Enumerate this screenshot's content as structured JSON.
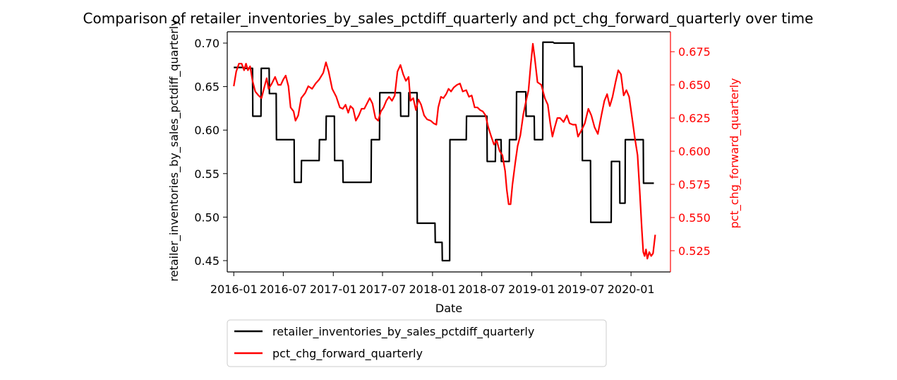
{
  "chart_data": {
    "type": "line",
    "title": "Comparison of retailer_inventories_by_sales_pctdiff_quarterly and pct_chg_forward_quarterly over time",
    "xlabel": "Date",
    "ylabel_left": "retailer_inventories_by_sales_pctdiff_quarterly",
    "ylabel_right": "pct_chg_forward_quarterly",
    "x_ticks": [
      "2016-01",
      "2016-07",
      "2017-01",
      "2017-07",
      "2018-01",
      "2018-07",
      "2019-01",
      "2019-07",
      "2020-01"
    ],
    "y_left_ticks": [
      "0.45",
      "0.50",
      "0.55",
      "0.60",
      "0.65",
      "0.70"
    ],
    "y_right_ticks": [
      "0.525",
      "0.550",
      "0.575",
      "0.600",
      "0.625",
      "0.650",
      "0.675"
    ],
    "y_left_lim": [
      0.437,
      0.713
    ],
    "y_right_lim": [
      0.509,
      0.69
    ],
    "grid": false,
    "legend_position": "below",
    "colors": {
      "left_series": "#000000",
      "right_series": "#ff0000",
      "right_axis": "#ff0000"
    },
    "series": [
      {
        "name": "retailer_inventories_by_sales_pctdiff_quarterly",
        "axis": "left",
        "color": "#000000",
        "points": [
          [
            "2016-01-01",
            0.672
          ],
          [
            "2016-02-05",
            0.672
          ],
          [
            "2016-02-10",
            0.671
          ],
          [
            "2016-03-10",
            0.671
          ],
          [
            "2016-03-11",
            0.616
          ],
          [
            "2016-04-10",
            0.616
          ],
          [
            "2016-04-11",
            0.671
          ],
          [
            "2016-05-10",
            0.671
          ],
          [
            "2016-05-11",
            0.642
          ],
          [
            "2016-06-05",
            0.642
          ],
          [
            "2016-06-06",
            0.589
          ],
          [
            "2016-08-10",
            0.589
          ],
          [
            "2016-08-11",
            0.54
          ],
          [
            "2016-09-05",
            0.54
          ],
          [
            "2016-09-06",
            0.565
          ],
          [
            "2016-11-10",
            0.565
          ],
          [
            "2016-11-11",
            0.589
          ],
          [
            "2016-12-05",
            0.589
          ],
          [
            "2016-12-06",
            0.616
          ],
          [
            "2017-01-05",
            0.616
          ],
          [
            "2017-01-06",
            0.565
          ],
          [
            "2017-02-05",
            0.565
          ],
          [
            "2017-02-06",
            0.54
          ],
          [
            "2017-05-20",
            0.54
          ],
          [
            "2017-05-21",
            0.589
          ],
          [
            "2017-06-20",
            0.589
          ],
          [
            "2017-06-21",
            0.643
          ],
          [
            "2017-09-05",
            0.643
          ],
          [
            "2017-09-06",
            0.616
          ],
          [
            "2017-10-05",
            0.616
          ],
          [
            "2017-10-06",
            0.643
          ],
          [
            "2017-11-05",
            0.643
          ],
          [
            "2017-11-06",
            0.493
          ],
          [
            "2018-01-10",
            0.493
          ],
          [
            "2018-01-11",
            0.471
          ],
          [
            "2018-02-05",
            0.471
          ],
          [
            "2018-02-06",
            0.45
          ],
          [
            "2018-03-05",
            0.45
          ],
          [
            "2018-03-06",
            0.589
          ],
          [
            "2018-05-05",
            0.589
          ],
          [
            "2018-05-06",
            0.616
          ],
          [
            "2018-07-20",
            0.616
          ],
          [
            "2018-07-21",
            0.564
          ],
          [
            "2018-08-20",
            0.564
          ],
          [
            "2018-08-21",
            0.589
          ],
          [
            "2018-09-10",
            0.589
          ],
          [
            "2018-09-11",
            0.564
          ],
          [
            "2018-10-10",
            0.564
          ],
          [
            "2018-10-11",
            0.589
          ],
          [
            "2018-11-05",
            0.589
          ],
          [
            "2018-11-06",
            0.644
          ],
          [
            "2018-12-10",
            0.644
          ],
          [
            "2018-12-11",
            0.616
          ],
          [
            "2019-01-10",
            0.616
          ],
          [
            "2019-01-11",
            0.589
          ],
          [
            "2019-02-10",
            0.589
          ],
          [
            "2019-02-11",
            0.701
          ],
          [
            "2019-03-20",
            0.701
          ],
          [
            "2019-03-25",
            0.7
          ],
          [
            "2019-06-05",
            0.7
          ],
          [
            "2019-06-06",
            0.673
          ],
          [
            "2019-07-05",
            0.673
          ],
          [
            "2019-07-06",
            0.565
          ],
          [
            "2019-08-05",
            0.565
          ],
          [
            "2019-08-06",
            0.494
          ],
          [
            "2019-10-20",
            0.494
          ],
          [
            "2019-10-21",
            0.564
          ],
          [
            "2019-11-20",
            0.564
          ],
          [
            "2019-11-21",
            0.516
          ],
          [
            "2019-12-10",
            0.516
          ],
          [
            "2019-12-11",
            0.589
          ],
          [
            "2020-02-15",
            0.589
          ],
          [
            "2020-02-16",
            0.539
          ],
          [
            "2020-03-25",
            0.539
          ]
        ]
      },
      {
        "name": "pct_chg_forward_quarterly",
        "axis": "right",
        "color": "#ff0000",
        "points": [
          [
            "2016-01-01",
            0.649
          ],
          [
            "2016-01-10",
            0.66
          ],
          [
            "2016-01-20",
            0.666
          ],
          [
            "2016-01-30",
            0.666
          ],
          [
            "2016-02-08",
            0.661
          ],
          [
            "2016-02-15",
            0.666
          ],
          [
            "2016-02-22",
            0.661
          ],
          [
            "2016-03-01",
            0.664
          ],
          [
            "2016-03-10",
            0.653
          ],
          [
            "2016-03-20",
            0.645
          ],
          [
            "2016-04-01",
            0.642
          ],
          [
            "2016-04-12",
            0.64
          ],
          [
            "2016-04-22",
            0.648
          ],
          [
            "2016-05-01",
            0.655
          ],
          [
            "2016-05-08",
            0.647
          ],
          [
            "2016-05-20",
            0.651
          ],
          [
            "2016-06-01",
            0.656
          ],
          [
            "2016-06-12",
            0.65
          ],
          [
            "2016-06-22",
            0.65
          ],
          [
            "2016-07-01",
            0.654
          ],
          [
            "2016-07-10",
            0.657
          ],
          [
            "2016-07-20",
            0.649
          ],
          [
            "2016-07-28",
            0.633
          ],
          [
            "2016-08-08",
            0.63
          ],
          [
            "2016-08-15",
            0.623
          ],
          [
            "2016-08-25",
            0.627
          ],
          [
            "2016-09-05",
            0.64
          ],
          [
            "2016-09-20",
            0.644
          ],
          [
            "2016-10-01",
            0.649
          ],
          [
            "2016-10-15",
            0.647
          ],
          [
            "2016-10-28",
            0.651
          ],
          [
            "2016-11-10",
            0.654
          ],
          [
            "2016-11-25",
            0.659
          ],
          [
            "2016-12-05",
            0.667
          ],
          [
            "2016-12-15",
            0.66
          ],
          [
            "2016-12-28",
            0.647
          ],
          [
            "2017-01-12",
            0.641
          ],
          [
            "2017-01-25",
            0.633
          ],
          [
            "2017-02-05",
            0.632
          ],
          [
            "2017-02-15",
            0.635
          ],
          [
            "2017-02-25",
            0.629
          ],
          [
            "2017-03-05",
            0.634
          ],
          [
            "2017-03-15",
            0.632
          ],
          [
            "2017-03-25",
            0.623
          ],
          [
            "2017-04-05",
            0.627
          ],
          [
            "2017-04-15",
            0.632
          ],
          [
            "2017-04-25",
            0.632
          ],
          [
            "2017-05-05",
            0.636
          ],
          [
            "2017-05-15",
            0.64
          ],
          [
            "2017-05-25",
            0.636
          ],
          [
            "2017-06-05",
            0.625
          ],
          [
            "2017-06-15",
            0.623
          ],
          [
            "2017-06-25",
            0.63
          ],
          [
            "2017-07-05",
            0.633
          ],
          [
            "2017-07-15",
            0.638
          ],
          [
            "2017-07-25",
            0.641
          ],
          [
            "2017-08-05",
            0.638
          ],
          [
            "2017-08-15",
            0.642
          ],
          [
            "2017-08-25",
            0.66
          ],
          [
            "2017-09-05",
            0.665
          ],
          [
            "2017-09-15",
            0.658
          ],
          [
            "2017-09-25",
            0.653
          ],
          [
            "2017-10-05",
            0.656
          ],
          [
            "2017-10-12",
            0.638
          ],
          [
            "2017-10-22",
            0.64
          ],
          [
            "2017-11-01",
            0.631
          ],
          [
            "2017-11-10",
            0.639
          ],
          [
            "2017-11-20",
            0.635
          ],
          [
            "2017-12-01",
            0.627
          ],
          [
            "2017-12-12",
            0.624
          ],
          [
            "2017-12-25",
            0.623
          ],
          [
            "2018-01-05",
            0.621
          ],
          [
            "2018-01-15",
            0.62
          ],
          [
            "2018-01-22",
            0.633
          ],
          [
            "2018-02-01",
            0.641
          ],
          [
            "2018-02-10",
            0.64
          ],
          [
            "2018-02-20",
            0.643
          ],
          [
            "2018-03-01",
            0.647
          ],
          [
            "2018-03-10",
            0.645
          ],
          [
            "2018-03-20",
            0.648
          ],
          [
            "2018-04-01",
            0.65
          ],
          [
            "2018-04-12",
            0.651
          ],
          [
            "2018-04-22",
            0.645
          ],
          [
            "2018-05-05",
            0.646
          ],
          [
            "2018-05-15",
            0.641
          ],
          [
            "2018-05-25",
            0.642
          ],
          [
            "2018-06-05",
            0.633
          ],
          [
            "2018-06-15",
            0.633
          ],
          [
            "2018-06-25",
            0.631
          ],
          [
            "2018-07-05",
            0.63
          ],
          [
            "2018-07-15",
            0.627
          ],
          [
            "2018-07-25",
            0.618
          ],
          [
            "2018-08-05",
            0.611
          ],
          [
            "2018-08-15",
            0.605
          ],
          [
            "2018-08-25",
            0.608
          ],
          [
            "2018-09-05",
            0.6
          ],
          [
            "2018-09-15",
            0.597
          ],
          [
            "2018-09-25",
            0.585
          ],
          [
            "2018-10-01",
            0.571
          ],
          [
            "2018-10-08",
            0.56
          ],
          [
            "2018-10-15",
            0.56
          ],
          [
            "2018-10-22",
            0.575
          ],
          [
            "2018-11-01",
            0.591
          ],
          [
            "2018-11-10",
            0.604
          ],
          [
            "2018-11-20",
            0.612
          ],
          [
            "2018-12-01",
            0.628
          ],
          [
            "2018-12-10",
            0.637
          ],
          [
            "2018-12-20",
            0.646
          ],
          [
            "2018-12-28",
            0.665
          ],
          [
            "2019-01-05",
            0.681
          ],
          [
            "2019-01-12",
            0.67
          ],
          [
            "2019-01-22",
            0.652
          ],
          [
            "2019-02-05",
            0.65
          ],
          [
            "2019-02-18",
            0.64
          ],
          [
            "2019-03-01",
            0.635
          ],
          [
            "2019-03-10",
            0.621
          ],
          [
            "2019-03-18",
            0.611
          ],
          [
            "2019-03-25",
            0.617
          ],
          [
            "2019-04-05",
            0.625
          ],
          [
            "2019-04-15",
            0.625
          ],
          [
            "2019-04-28",
            0.622
          ],
          [
            "2019-05-10",
            0.627
          ],
          [
            "2019-05-20",
            0.621
          ],
          [
            "2019-06-01",
            0.62
          ],
          [
            "2019-06-12",
            0.62
          ],
          [
            "2019-06-20",
            0.611
          ],
          [
            "2019-07-01",
            0.615
          ],
          [
            "2019-07-15",
            0.621
          ],
          [
            "2019-07-28",
            0.632
          ],
          [
            "2019-08-08",
            0.627
          ],
          [
            "2019-08-20",
            0.618
          ],
          [
            "2019-09-01",
            0.613
          ],
          [
            "2019-09-15",
            0.628
          ],
          [
            "2019-09-25",
            0.638
          ],
          [
            "2019-10-05",
            0.643
          ],
          [
            "2019-10-15",
            0.634
          ],
          [
            "2019-10-25",
            0.641
          ],
          [
            "2019-11-05",
            0.652
          ],
          [
            "2019-11-15",
            0.661
          ],
          [
            "2019-11-25",
            0.658
          ],
          [
            "2019-12-05",
            0.642
          ],
          [
            "2019-12-15",
            0.646
          ],
          [
            "2019-12-25",
            0.641
          ],
          [
            "2020-01-05",
            0.625
          ],
          [
            "2020-01-15",
            0.61
          ],
          [
            "2020-01-25",
            0.597
          ],
          [
            "2020-02-02",
            0.57
          ],
          [
            "2020-02-10",
            0.54
          ],
          [
            "2020-02-15",
            0.524
          ],
          [
            "2020-02-20",
            0.521
          ],
          [
            "2020-02-25",
            0.526
          ],
          [
            "2020-03-01",
            0.519
          ],
          [
            "2020-03-08",
            0.524
          ],
          [
            "2020-03-15",
            0.521
          ],
          [
            "2020-03-22",
            0.523
          ],
          [
            "2020-03-30",
            0.537
          ]
        ]
      }
    ]
  }
}
